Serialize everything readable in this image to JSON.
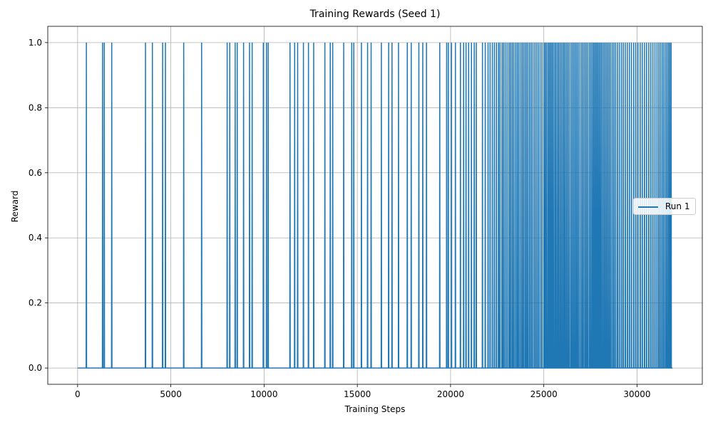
{
  "chart_data": {
    "type": "line",
    "title": "Training Rewards (Seed 1)",
    "xlabel": "Training Steps",
    "ylabel": "Reward",
    "xlim": [
      -1600,
      33500
    ],
    "ylim": [
      -0.05,
      1.05
    ],
    "x_ticks": [
      0,
      5000,
      10000,
      15000,
      20000,
      25000,
      30000
    ],
    "y_ticks": [
      0.0,
      0.2,
      0.4,
      0.6,
      0.8,
      1.0
    ],
    "x_tick_labels": [
      "0",
      "5000",
      "10000",
      "15000",
      "20000",
      "25000",
      "30000"
    ],
    "y_tick_labels": [
      "0.0",
      "0.2",
      "0.4",
      "0.6",
      "0.8",
      "1.0"
    ],
    "grid": true,
    "legend": {
      "placement": "center-right",
      "entries": [
        "Run 1"
      ]
    },
    "series": [
      {
        "name": "Run 1",
        "color": "#1f77b4",
        "x_range": [
          0,
          31900
        ],
        "baseline": 0.0,
        "spike_value": 1.0,
        "reward_1_steps": [
          470,
          1340,
          1430,
          1830,
          3640,
          4010,
          4560,
          4710,
          5690,
          6650,
          8020,
          8160,
          8450,
          8560,
          8900,
          9220,
          9360,
          9960,
          10130,
          10220,
          11390,
          11640,
          11800,
          12110,
          12380,
          12660,
          13260,
          13550,
          13680,
          14270,
          14700,
          14810,
          15220,
          15550,
          15740,
          16290,
          16680,
          16860,
          17210,
          17680,
          17890,
          18300,
          18510,
          18710,
          19420,
          19790,
          19880,
          20050,
          20260,
          20530,
          20700,
          20830,
          20970,
          21120,
          21270,
          21380,
          21710,
          21860,
          22010,
          22120,
          22240,
          22350,
          22460,
          22570,
          22650,
          22760,
          22840,
          22930,
          23030,
          23130,
          23210,
          23300,
          23380,
          23470,
          23560,
          23640,
          23730,
          23820,
          23900,
          23990,
          24070,
          24150,
          24240,
          24330,
          24420,
          24520,
          24610,
          24700,
          24800,
          24900,
          25010,
          25080,
          25150,
          25230,
          25300,
          25370,
          25440,
          25510,
          25590,
          25660,
          25740,
          25810,
          25890,
          25970,
          26050,
          26120,
          26200,
          26280,
          26360,
          26450,
          26530,
          26610,
          26690,
          26770,
          26850,
          26940,
          27030,
          27110,
          27200,
          27280,
          27360,
          27450,
          27530,
          27610,
          27680,
          27750,
          27820,
          27890,
          27960,
          28030,
          28100,
          28180,
          28260,
          28340,
          28420,
          28500,
          28580,
          28670,
          28760,
          28850,
          28950,
          29050,
          29160,
          29260,
          29370,
          29480,
          29590,
          29700,
          29820,
          29930,
          30050,
          30170,
          30280,
          30400,
          30510,
          30630,
          30740,
          30850,
          30960,
          31070,
          31170,
          31260,
          31350,
          31440,
          31530,
          31610,
          31690,
          31760,
          31830
        ]
      }
    ]
  }
}
